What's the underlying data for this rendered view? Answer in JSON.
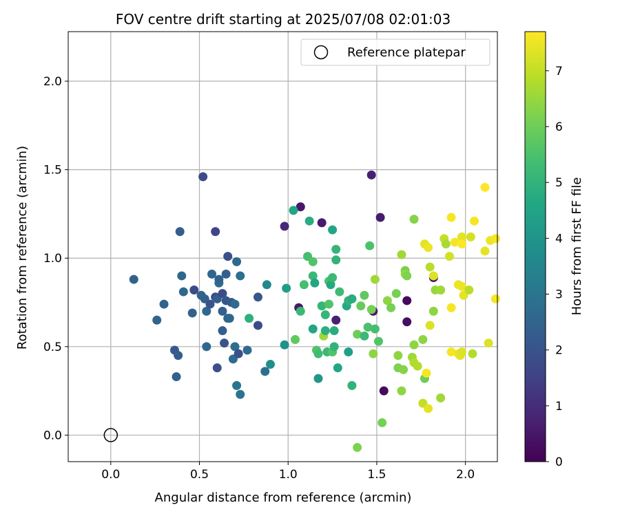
{
  "chart_data": {
    "type": "scatter",
    "title": "FOV centre drift starting at 2025/07/08 02:01:03",
    "xlabel": "Angular distance from reference (arcmin)",
    "ylabel": "Rotation from reference (arcmin)",
    "xlim": [
      -0.24,
      2.18
    ],
    "ylim": [
      -0.15,
      2.28
    ],
    "xticks": [
      0.0,
      0.5,
      1.0,
      1.5,
      2.0
    ],
    "yticks": [
      0.0,
      0.5,
      1.0,
      1.5,
      2.0
    ],
    "xtick_labels": [
      "0.0",
      "0.5",
      "1.0",
      "1.5",
      "2.0"
    ],
    "ytick_labels": [
      "0.0",
      "0.5",
      "1.0",
      "1.5",
      "2.0"
    ],
    "grid": true,
    "legend": {
      "placement": "top-right",
      "label": "Reference platepar"
    },
    "reference_point": {
      "x": 0.0,
      "y": 0.0
    },
    "colorbar": {
      "label": "Hours from first FF file",
      "min": 0,
      "max": 7.7,
      "ticks": [
        0,
        1,
        2,
        3,
        4,
        5,
        6,
        7
      ],
      "tick_labels": [
        "0",
        "1",
        "2",
        "3",
        "4",
        "5",
        "6",
        "7"
      ],
      "colormap": "viridis"
    },
    "points": [
      {
        "x": 1.07,
        "y": 1.29,
        "h": 0.5
      },
      {
        "x": 1.19,
        "y": 1.2,
        "h": 0.6
      },
      {
        "x": 1.47,
        "y": 1.47,
        "h": 0.7
      },
      {
        "x": 1.52,
        "y": 1.23,
        "h": 0.6
      },
      {
        "x": 0.98,
        "y": 1.18,
        "h": 0.9
      },
      {
        "x": 1.06,
        "y": 0.72,
        "h": 0.6
      },
      {
        "x": 1.27,
        "y": 0.65,
        "h": 0.7
      },
      {
        "x": 1.48,
        "y": 0.7,
        "h": 0.6
      },
      {
        "x": 1.54,
        "y": 0.25,
        "h": 0.2
      },
      {
        "x": 1.67,
        "y": 0.76,
        "h": 0.2
      },
      {
        "x": 1.67,
        "y": 0.64,
        "h": 0.3
      },
      {
        "x": 1.82,
        "y": 0.89,
        "h": 0.5
      },
      {
        "x": 0.52,
        "y": 1.46,
        "h": 1.8
      },
      {
        "x": 0.59,
        "y": 1.15,
        "h": 1.6
      },
      {
        "x": 0.39,
        "y": 1.15,
        "h": 2.3
      },
      {
        "x": 0.13,
        "y": 0.88,
        "h": 2.4
      },
      {
        "x": 0.26,
        "y": 0.65,
        "h": 2.5
      },
      {
        "x": 0.3,
        "y": 0.74,
        "h": 2.5
      },
      {
        "x": 0.36,
        "y": 0.48,
        "h": 2.2
      },
      {
        "x": 0.38,
        "y": 0.45,
        "h": 2.3
      },
      {
        "x": 0.37,
        "y": 0.33,
        "h": 2.4
      },
      {
        "x": 0.4,
        "y": 0.9,
        "h": 2.6
      },
      {
        "x": 0.41,
        "y": 0.81,
        "h": 2.6
      },
      {
        "x": 0.46,
        "y": 0.69,
        "h": 2.4
      },
      {
        "x": 0.47,
        "y": 0.82,
        "h": 1.8
      },
      {
        "x": 0.51,
        "y": 0.79,
        "h": 2.5
      },
      {
        "x": 0.53,
        "y": 0.77,
        "h": 2.4
      },
      {
        "x": 0.54,
        "y": 0.7,
        "h": 2.6
      },
      {
        "x": 0.54,
        "y": 0.5,
        "h": 2.6
      },
      {
        "x": 0.56,
        "y": 0.74,
        "h": 2.0
      },
      {
        "x": 0.57,
        "y": 0.91,
        "h": 2.6
      },
      {
        "x": 0.59,
        "y": 0.78,
        "h": 1.7
      },
      {
        "x": 0.6,
        "y": 0.77,
        "h": 2.3
      },
      {
        "x": 0.61,
        "y": 0.86,
        "h": 2.7
      },
      {
        "x": 0.61,
        "y": 0.88,
        "h": 2.5
      },
      {
        "x": 0.63,
        "y": 0.8,
        "h": 1.8
      },
      {
        "x": 0.63,
        "y": 0.7,
        "h": 2.4
      },
      {
        "x": 0.63,
        "y": 0.59,
        "h": 2.3
      },
      {
        "x": 0.64,
        "y": 0.52,
        "h": 2.0
      },
      {
        "x": 0.65,
        "y": 0.76,
        "h": 2.1
      },
      {
        "x": 0.65,
        "y": 0.91,
        "h": 2.4
      },
      {
        "x": 0.66,
        "y": 1.01,
        "h": 1.9
      },
      {
        "x": 0.66,
        "y": 0.66,
        "h": 2.4
      },
      {
        "x": 0.67,
        "y": 0.66,
        "h": 2.6
      },
      {
        "x": 0.68,
        "y": 0.75,
        "h": 2.2
      },
      {
        "x": 0.69,
        "y": 0.43,
        "h": 2.7
      },
      {
        "x": 0.7,
        "y": 0.5,
        "h": 2.8
      },
      {
        "x": 0.7,
        "y": 0.74,
        "h": 2.7
      },
      {
        "x": 0.71,
        "y": 0.98,
        "h": 2.6
      },
      {
        "x": 0.71,
        "y": 0.28,
        "h": 3.0
      },
      {
        "x": 0.72,
        "y": 0.46,
        "h": 1.9
      },
      {
        "x": 0.73,
        "y": 0.23,
        "h": 3.0
      },
      {
        "x": 0.73,
        "y": 0.9,
        "h": 2.8
      },
      {
        "x": 0.6,
        "y": 0.38,
        "h": 1.9
      },
      {
        "x": 0.77,
        "y": 0.48,
        "h": 2.7
      },
      {
        "x": 0.78,
        "y": 0.66,
        "h": 4.9
      },
      {
        "x": 0.83,
        "y": 0.78,
        "h": 2.1
      },
      {
        "x": 0.83,
        "y": 0.62,
        "h": 1.8
      },
      {
        "x": 0.87,
        "y": 0.36,
        "h": 2.8
      },
      {
        "x": 0.88,
        "y": 0.85,
        "h": 3.6
      },
      {
        "x": 0.9,
        "y": 0.4,
        "h": 3.8
      },
      {
        "x": 0.98,
        "y": 0.51,
        "h": 3.9
      },
      {
        "x": 0.99,
        "y": 0.83,
        "h": 4.3
      },
      {
        "x": 1.03,
        "y": 1.27,
        "h": 4.6
      },
      {
        "x": 1.04,
        "y": 0.54,
        "h": 5.8
      },
      {
        "x": 1.07,
        "y": 0.7,
        "h": 5.2
      },
      {
        "x": 1.09,
        "y": 0.85,
        "h": 5.4
      },
      {
        "x": 1.11,
        "y": 1.01,
        "h": 5.4
      },
      {
        "x": 1.12,
        "y": 1.21,
        "h": 4.8
      },
      {
        "x": 1.14,
        "y": 0.98,
        "h": 5.6
      },
      {
        "x": 1.14,
        "y": 0.9,
        "h": 5.2
      },
      {
        "x": 1.14,
        "y": 0.6,
        "h": 4.6
      },
      {
        "x": 1.15,
        "y": 0.86,
        "h": 4.6
      },
      {
        "x": 1.16,
        "y": 0.48,
        "h": 5.6
      },
      {
        "x": 1.17,
        "y": 0.46,
        "h": 5.3
      },
      {
        "x": 1.17,
        "y": 0.32,
        "h": 4.1
      },
      {
        "x": 1.19,
        "y": 0.73,
        "h": 5.1
      },
      {
        "x": 1.2,
        "y": 0.56,
        "h": 6.6
      },
      {
        "x": 1.21,
        "y": 0.68,
        "h": 5.1
      },
      {
        "x": 1.21,
        "y": 0.59,
        "h": 4.9
      },
      {
        "x": 1.22,
        "y": 0.47,
        "h": 5.2
      },
      {
        "x": 1.23,
        "y": 0.74,
        "h": 5.6
      },
      {
        "x": 1.23,
        "y": 0.87,
        "h": 5.5
      },
      {
        "x": 1.24,
        "y": 0.85,
        "h": 4.7
      },
      {
        "x": 1.25,
        "y": 1.16,
        "h": 4.6
      },
      {
        "x": 1.25,
        "y": 0.89,
        "h": 5.2
      },
      {
        "x": 1.25,
        "y": 0.47,
        "h": 5.6
      },
      {
        "x": 1.26,
        "y": 0.59,
        "h": 4.8
      },
      {
        "x": 1.26,
        "y": 0.5,
        "h": 5.0
      },
      {
        "x": 1.27,
        "y": 1.05,
        "h": 5.1
      },
      {
        "x": 1.27,
        "y": 0.99,
        "h": 5.0
      },
      {
        "x": 1.28,
        "y": 0.38,
        "h": 4.6
      },
      {
        "x": 1.29,
        "y": 0.81,
        "h": 5.3
      },
      {
        "x": 1.33,
        "y": 0.73,
        "h": 4.7
      },
      {
        "x": 1.34,
        "y": 0.47,
        "h": 4.4
      },
      {
        "x": 1.34,
        "y": 0.76,
        "h": 5.0
      },
      {
        "x": 1.36,
        "y": 0.77,
        "h": 4.8
      },
      {
        "x": 1.36,
        "y": 0.28,
        "h": 5.0
      },
      {
        "x": 1.39,
        "y": -0.07,
        "h": 6.2
      },
      {
        "x": 1.39,
        "y": 0.57,
        "h": 6.0
      },
      {
        "x": 1.41,
        "y": 0.73,
        "h": 5.9
      },
      {
        "x": 1.43,
        "y": 0.79,
        "h": 5.8
      },
      {
        "x": 1.43,
        "y": 0.56,
        "h": 5.2
      },
      {
        "x": 1.45,
        "y": 0.61,
        "h": 5.5
      },
      {
        "x": 1.46,
        "y": 1.07,
        "h": 5.5
      },
      {
        "x": 1.47,
        "y": 0.71,
        "h": 6.1
      },
      {
        "x": 1.48,
        "y": 0.46,
        "h": 6.4
      },
      {
        "x": 1.49,
        "y": 0.88,
        "h": 6.6
      },
      {
        "x": 1.49,
        "y": 0.6,
        "h": 5.4
      },
      {
        "x": 1.51,
        "y": 0.53,
        "h": 5.6
      },
      {
        "x": 1.53,
        "y": 0.07,
        "h": 6.1
      },
      {
        "x": 1.56,
        "y": 0.76,
        "h": 6.4
      },
      {
        "x": 1.58,
        "y": 0.72,
        "h": 6.1
      },
      {
        "x": 1.61,
        "y": 0.8,
        "h": 6.1
      },
      {
        "x": 1.62,
        "y": 0.45,
        "h": 6.4
      },
      {
        "x": 1.62,
        "y": 0.38,
        "h": 6.2
      },
      {
        "x": 1.64,
        "y": 1.02,
        "h": 6.6
      },
      {
        "x": 1.64,
        "y": 0.25,
        "h": 6.4
      },
      {
        "x": 1.65,
        "y": 0.37,
        "h": 6.3
      },
      {
        "x": 1.66,
        "y": 0.93,
        "h": 6.1
      },
      {
        "x": 1.66,
        "y": 0.91,
        "h": 6.5
      },
      {
        "x": 1.67,
        "y": 0.9,
        "h": 6.2
      },
      {
        "x": 1.7,
        "y": 0.44,
        "h": 6.6
      },
      {
        "x": 1.71,
        "y": 1.22,
        "h": 6.3
      },
      {
        "x": 1.71,
        "y": 0.41,
        "h": 6.8
      },
      {
        "x": 1.71,
        "y": 0.51,
        "h": 6.4
      },
      {
        "x": 1.73,
        "y": 0.39,
        "h": 6.8
      },
      {
        "x": 1.76,
        "y": 0.18,
        "h": 7.0
      },
      {
        "x": 1.76,
        "y": 0.54,
        "h": 6.4
      },
      {
        "x": 1.77,
        "y": 0.32,
        "h": 6.0
      },
      {
        "x": 1.77,
        "y": 1.08,
        "h": 7.4
      },
      {
        "x": 1.78,
        "y": 0.35,
        "h": 7.6
      },
      {
        "x": 1.79,
        "y": 1.06,
        "h": 7.5
      },
      {
        "x": 1.79,
        "y": 0.15,
        "h": 7.4
      },
      {
        "x": 1.8,
        "y": 0.95,
        "h": 6.9
      },
      {
        "x": 1.8,
        "y": 0.62,
        "h": 7.3
      },
      {
        "x": 1.82,
        "y": 0.7,
        "h": 6.4
      },
      {
        "x": 1.82,
        "y": 0.9,
        "h": 7.3
      },
      {
        "x": 1.83,
        "y": 0.82,
        "h": 6.5
      },
      {
        "x": 1.86,
        "y": 0.82,
        "h": 6.6
      },
      {
        "x": 1.86,
        "y": 0.21,
        "h": 6.6
      },
      {
        "x": 1.88,
        "y": 1.11,
        "h": 7.0
      },
      {
        "x": 1.89,
        "y": 1.08,
        "h": 6.7
      },
      {
        "x": 1.91,
        "y": 1.01,
        "h": 7.2
      },
      {
        "x": 1.92,
        "y": 1.23,
        "h": 7.6
      },
      {
        "x": 1.92,
        "y": 0.72,
        "h": 7.6
      },
      {
        "x": 1.92,
        "y": 0.47,
        "h": 7.6
      },
      {
        "x": 1.94,
        "y": 1.09,
        "h": 7.6
      },
      {
        "x": 1.96,
        "y": 0.85,
        "h": 7.5
      },
      {
        "x": 1.96,
        "y": 0.46,
        "h": 7.5
      },
      {
        "x": 1.97,
        "y": 0.45,
        "h": 7.4
      },
      {
        "x": 1.98,
        "y": 0.47,
        "h": 7.3
      },
      {
        "x": 1.98,
        "y": 1.12,
        "h": 7.4
      },
      {
        "x": 1.98,
        "y": 0.84,
        "h": 7.5
      },
      {
        "x": 1.98,
        "y": 1.08,
        "h": 7.7
      },
      {
        "x": 1.99,
        "y": 0.79,
        "h": 7.4
      },
      {
        "x": 2.02,
        "y": 0.82,
        "h": 6.9
      },
      {
        "x": 2.03,
        "y": 1.12,
        "h": 7.2
      },
      {
        "x": 2.04,
        "y": 0.46,
        "h": 6.8
      },
      {
        "x": 2.05,
        "y": 1.21,
        "h": 7.6
      },
      {
        "x": 2.11,
        "y": 1.4,
        "h": 7.7
      },
      {
        "x": 2.11,
        "y": 1.04,
        "h": 7.4
      },
      {
        "x": 2.13,
        "y": 0.52,
        "h": 7.3
      },
      {
        "x": 2.14,
        "y": 1.1,
        "h": 7.5
      },
      {
        "x": 2.17,
        "y": 1.11,
        "h": 7.6
      },
      {
        "x": 2.17,
        "y": 0.77,
        "h": 7.6
      }
    ]
  }
}
